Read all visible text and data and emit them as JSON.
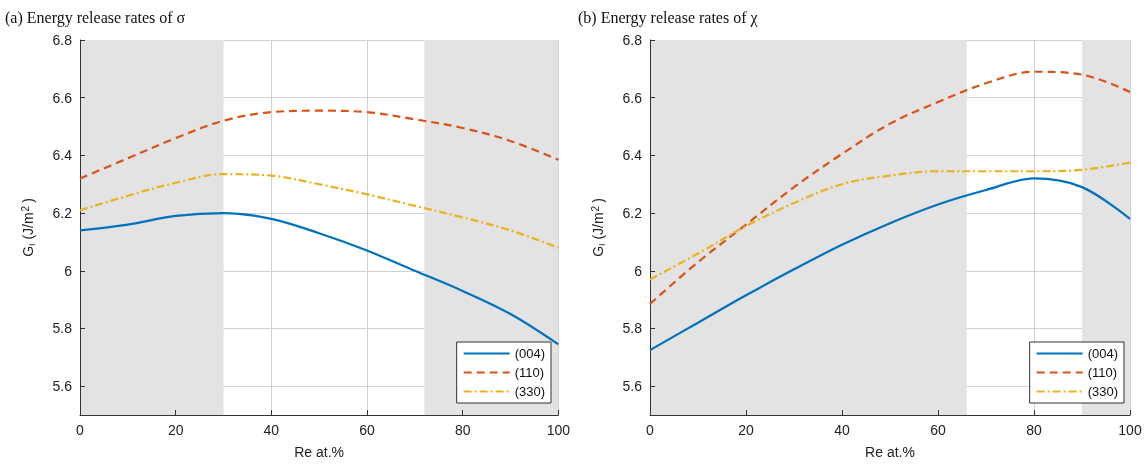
{
  "chart_data": [
    {
      "type": "line",
      "title": "(a) Energy release rates of σ",
      "xlabel": "Re at.%",
      "ylabel": "G$_{I}$ (J/m$^{2}$)",
      "x": [
        0,
        10,
        20,
        30,
        40,
        50,
        60,
        70,
        80,
        90,
        100
      ],
      "xlim": [
        0,
        100
      ],
      "xticks": [
        0,
        20,
        40,
        60,
        80,
        100
      ],
      "ylim": [
        5.5,
        6.8
      ],
      "yticks": [
        5.6,
        5.8,
        6,
        6.2,
        6.4,
        6.6,
        6.8
      ],
      "grid": true,
      "legend": "bottom right",
      "marker": "none",
      "bands": [
        {
          "axis": "x",
          "from": 0,
          "to": 30,
          "color": "#e3e3e3"
        },
        {
          "axis": "x",
          "from": 72,
          "to": 100,
          "color": "#e3e3e3"
        }
      ],
      "series": [
        {
          "name": "(004)",
          "color": "#0072bd",
          "line_style": "solid",
          "values": [
            6.14,
            6.16,
            6.19,
            6.2,
            6.18,
            6.13,
            6.07,
            6.0,
            5.93,
            5.85,
            5.745
          ]
        },
        {
          "name": "(110)",
          "color": "#d95319",
          "line_style": "dashed",
          "values": [
            6.32,
            6.39,
            6.46,
            6.52,
            6.55,
            6.555,
            6.55,
            6.525,
            6.495,
            6.45,
            6.385
          ]
        },
        {
          "name": "(330)",
          "color": "#edb120",
          "line_style": "dashdot",
          "values": [
            6.21,
            6.26,
            6.305,
            6.335,
            6.33,
            6.3,
            6.265,
            6.225,
            6.185,
            6.14,
            6.08
          ]
        }
      ]
    },
    {
      "type": "line",
      "title": "(b) Energy release rates of χ",
      "xlabel": "Re at.%",
      "ylabel": "G$_{I}$ (J/m$^{2}$)",
      "x": [
        0,
        10,
        20,
        30,
        40,
        50,
        60,
        70,
        80,
        90,
        100
      ],
      "xlim": [
        0,
        100
      ],
      "xticks": [
        0,
        20,
        40,
        60,
        80,
        100
      ],
      "ylim": [
        5.5,
        6.8
      ],
      "yticks": [
        5.6,
        5.8,
        6,
        6.2,
        6.4,
        6.6,
        6.8
      ],
      "grid": true,
      "legend": "bottom right",
      "marker": "none",
      "bands": [
        {
          "axis": "x",
          "from": 0,
          "to": 66,
          "color": "#e3e3e3"
        },
        {
          "axis": "x",
          "from": 90,
          "to": 100,
          "color": "#e3e3e3"
        }
      ],
      "series": [
        {
          "name": "(004)",
          "color": "#0072bd",
          "line_style": "solid",
          "values": [
            5.725,
            5.82,
            5.915,
            6.005,
            6.09,
            6.165,
            6.23,
            6.28,
            6.32,
            6.29,
            6.18
          ]
        },
        {
          "name": "(110)",
          "color": "#d95319",
          "line_style": "dashed",
          "values": [
            5.885,
            6.03,
            6.16,
            6.29,
            6.405,
            6.51,
            6.585,
            6.65,
            6.69,
            6.68,
            6.62
          ]
        },
        {
          "name": "(330)",
          "color": "#edb120",
          "line_style": "dashdot",
          "values": [
            5.97,
            6.06,
            6.155,
            6.235,
            6.3,
            6.33,
            6.345,
            6.345,
            6.345,
            6.35,
            6.375
          ]
        }
      ]
    }
  ]
}
